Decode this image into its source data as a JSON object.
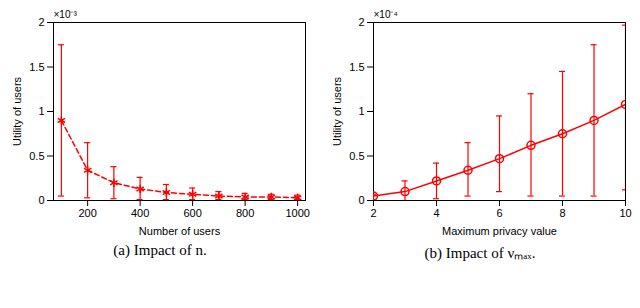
{
  "chart_data": [
    {
      "type": "line",
      "xlabel": "Number of users",
      "ylabel": "Utility of users",
      "annotation": "×10⁻³",
      "caption": "(a) Impact of n.",
      "x": [
        100,
        200,
        300,
        400,
        500,
        600,
        700,
        800,
        900,
        1000
      ],
      "values": [
        0.0009,
        0.00034,
        0.0002,
        0.00013,
        9e-05,
        7e-05,
        5e-05,
        4e-05,
        4e-05,
        3e-05
      ],
      "error_lower": [
        5e-05,
        3e-05,
        2e-05,
        1e-05,
        1e-05,
        1e-05,
        1e-05,
        1e-05,
        1e-05,
        1e-05
      ],
      "error_upper": [
        0.00175,
        0.00065,
        0.00038,
        0.00026,
        0.00018,
        0.00014,
        0.0001,
        8e-05,
        7e-05,
        6e-05
      ],
      "xlim": [
        70,
        1030
      ],
      "xticks": [
        200,
        400,
        600,
        800,
        1000
      ],
      "ylim": [
        0,
        0.002
      ],
      "yticks": [
        0,
        {
          "value": 0.0005,
          "label": "0.5"
        },
        {
          "value": 0.001,
          "label": "1"
        },
        {
          "value": 0.0015,
          "label": "1.5"
        },
        {
          "value": 0.002,
          "label": "2"
        }
      ],
      "color": "#ff0000",
      "marker": "asterisk",
      "line_style": "dashed",
      "grid": false
    },
    {
      "type": "line",
      "xlabel": "Maximum privacy value",
      "ylabel": "Utility of users",
      "annotation": "×10⁻⁴",
      "caption": "(b) Impact of νₘₐₓ.",
      "x": [
        2,
        3,
        4,
        5,
        6,
        7,
        8,
        9,
        10
      ],
      "values": [
        5e-06,
        1e-05,
        2.2e-05,
        3.4e-05,
        4.7e-05,
        6.2e-05,
        7.5e-05,
        9e-05,
        0.000108
      ],
      "error_lower": [
        0,
        0,
        2e-06,
        5e-06,
        1e-05,
        5e-06,
        5e-06,
        5e-06,
        1.2e-05
      ],
      "error_upper": [
        7e-06,
        2.2e-05,
        4.2e-05,
        6.5e-05,
        9.5e-05,
        0.00012,
        0.000145,
        0.000175,
        0.000197
      ],
      "xlim": [
        2,
        10
      ],
      "xticks": [
        2,
        4,
        6,
        8,
        10
      ],
      "ylim": [
        0,
        0.0002
      ],
      "yticks": [
        0,
        {
          "value": 5e-05,
          "label": "0.5"
        },
        {
          "value": 0.0001,
          "label": "1"
        },
        {
          "value": 0.00015,
          "label": "1.5"
        },
        {
          "value": 0.0002,
          "label": "2"
        }
      ],
      "color": "#ff0000",
      "marker": "circle",
      "line_style": "solid",
      "grid": false
    }
  ]
}
